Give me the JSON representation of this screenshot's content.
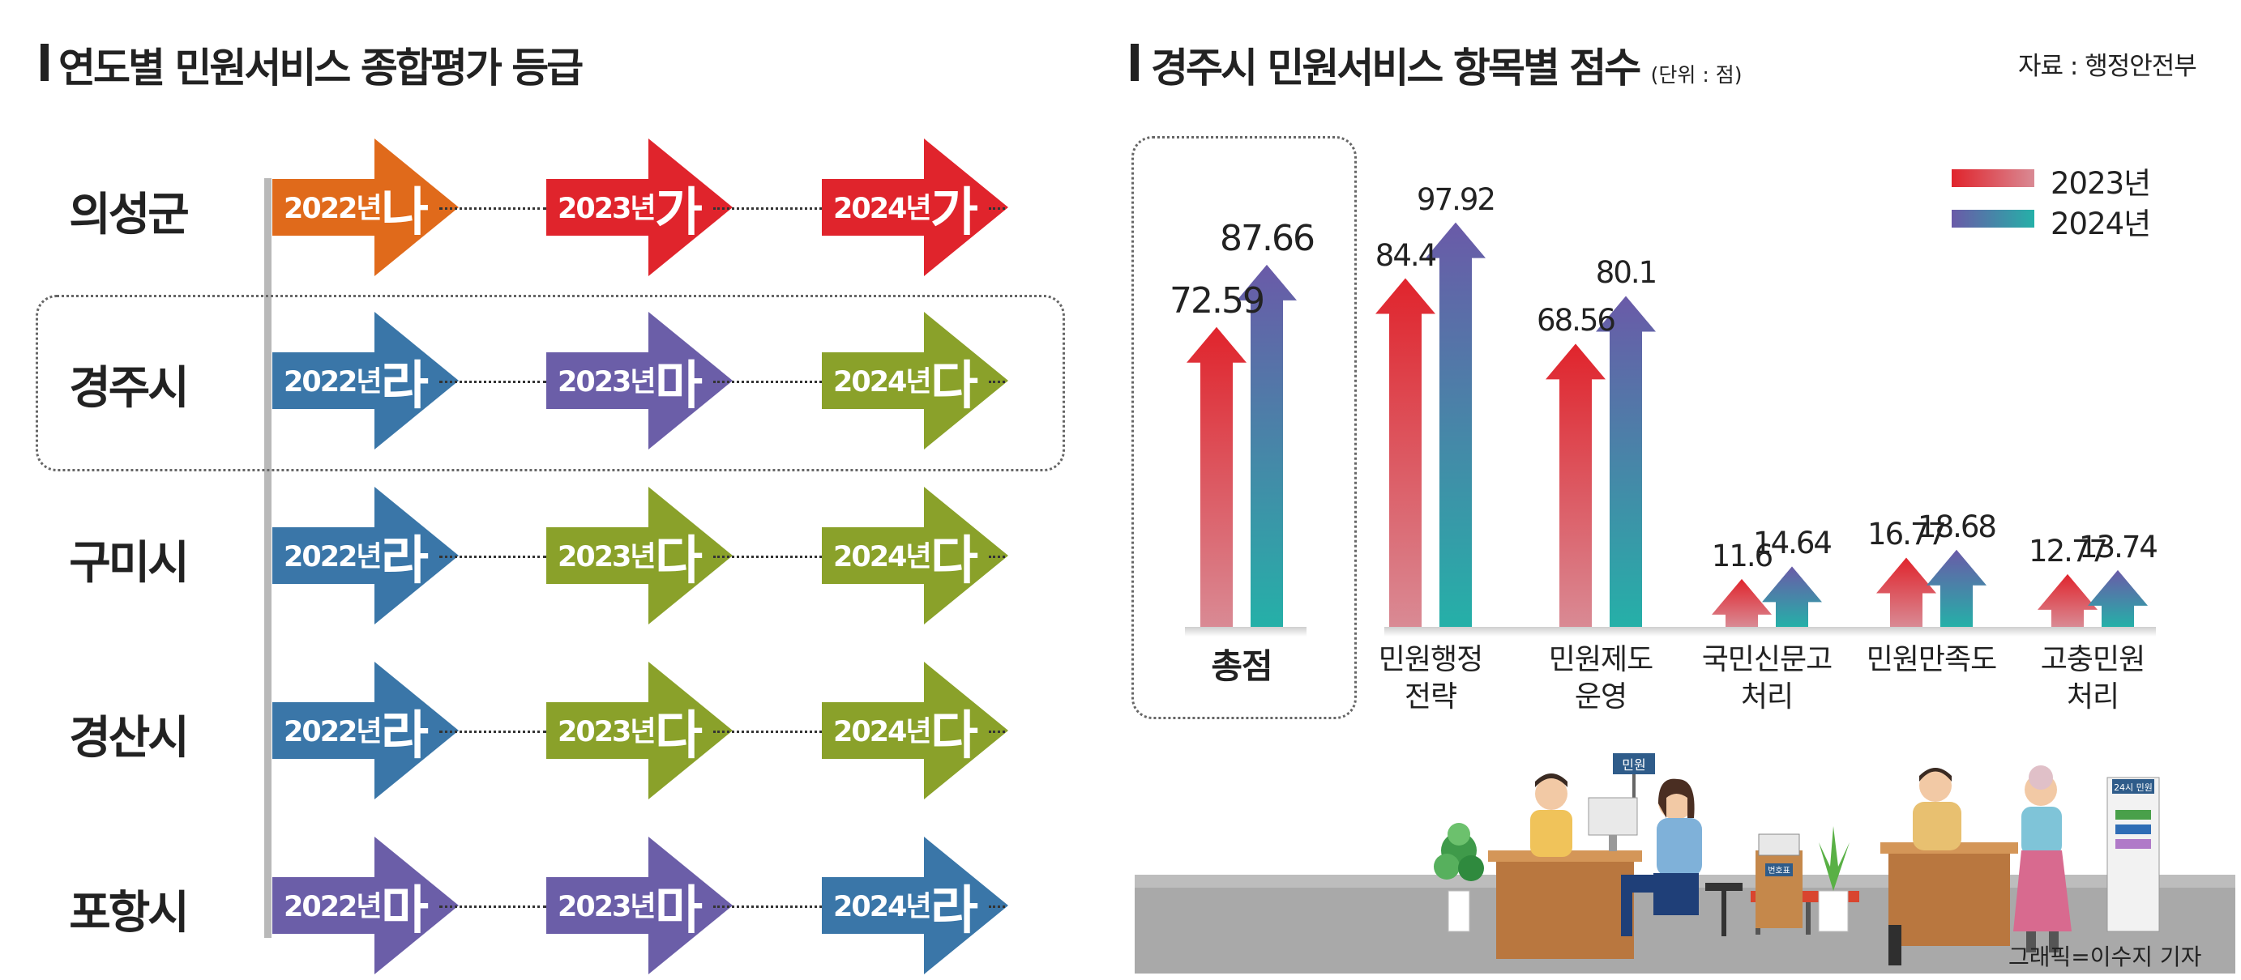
{
  "left": {
    "title": "연도별 민원서비스 종합평가 등급",
    "rows": [
      {
        "region": "의성군",
        "grades": [
          {
            "year": "2022년",
            "grade": "나",
            "color": "#e06a1b"
          },
          {
            "year": "2023년",
            "grade": "가",
            "color": "#e0242c"
          },
          {
            "year": "2024년",
            "grade": "가",
            "color": "#e0242c"
          }
        ]
      },
      {
        "region": "경주시",
        "grades": [
          {
            "year": "2022년",
            "grade": "라",
            "color": "#3a76a8"
          },
          {
            "year": "2023년",
            "grade": "마",
            "color": "#6b5ea8"
          },
          {
            "year": "2024년",
            "grade": "다",
            "color": "#8aa12a"
          }
        ]
      },
      {
        "region": "구미시",
        "grades": [
          {
            "year": "2022년",
            "grade": "라",
            "color": "#3a76a8"
          },
          {
            "year": "2023년",
            "grade": "다",
            "color": "#8aa12a"
          },
          {
            "year": "2024년",
            "grade": "다",
            "color": "#8aa12a"
          }
        ]
      },
      {
        "region": "경산시",
        "grades": [
          {
            "year": "2022년",
            "grade": "라",
            "color": "#3a76a8"
          },
          {
            "year": "2023년",
            "grade": "다",
            "color": "#8aa12a"
          },
          {
            "year": "2024년",
            "grade": "다",
            "color": "#8aa12a"
          }
        ]
      },
      {
        "region": "포항시",
        "grades": [
          {
            "year": "2022년",
            "grade": "마",
            "color": "#6b5ea8"
          },
          {
            "year": "2023년",
            "grade": "마",
            "color": "#6b5ea8"
          },
          {
            "year": "2024년",
            "grade": "라",
            "color": "#3a76a8"
          }
        ]
      }
    ]
  },
  "right": {
    "title": "경주시 민원서비스 항목별 점수",
    "unit": "(단위 : 점)",
    "source": "자료 : 행정안전부"
  },
  "chart_data": {
    "type": "bar",
    "title": "경주시 민원서비스 항목별 점수",
    "unit": "(단위 : 점)",
    "categories": [
      "총점",
      "민원행정\n전략",
      "민원제도\n운영",
      "국민신문고\n처리",
      "민원만족도",
      "고충민원\n처리"
    ],
    "series": [
      {
        "name": "2023년",
        "values": [
          72.59,
          84.4,
          68.56,
          11.6,
          16.77,
          12.77
        ],
        "colors": [
          "#e0242c",
          "#d98a94"
        ]
      },
      {
        "name": "2024년",
        "values": [
          87.66,
          97.92,
          80.1,
          14.64,
          18.68,
          13.74
        ],
        "colors": [
          "#6a5aa8",
          "#25b0a8"
        ]
      }
    ],
    "legend_position": "top-right",
    "grid": false
  },
  "credit": "그래픽=이수지 기자",
  "illustration": {
    "sign_label": "민원",
    "kiosk_label": "24시 민원",
    "machine_label": "번호표"
  }
}
